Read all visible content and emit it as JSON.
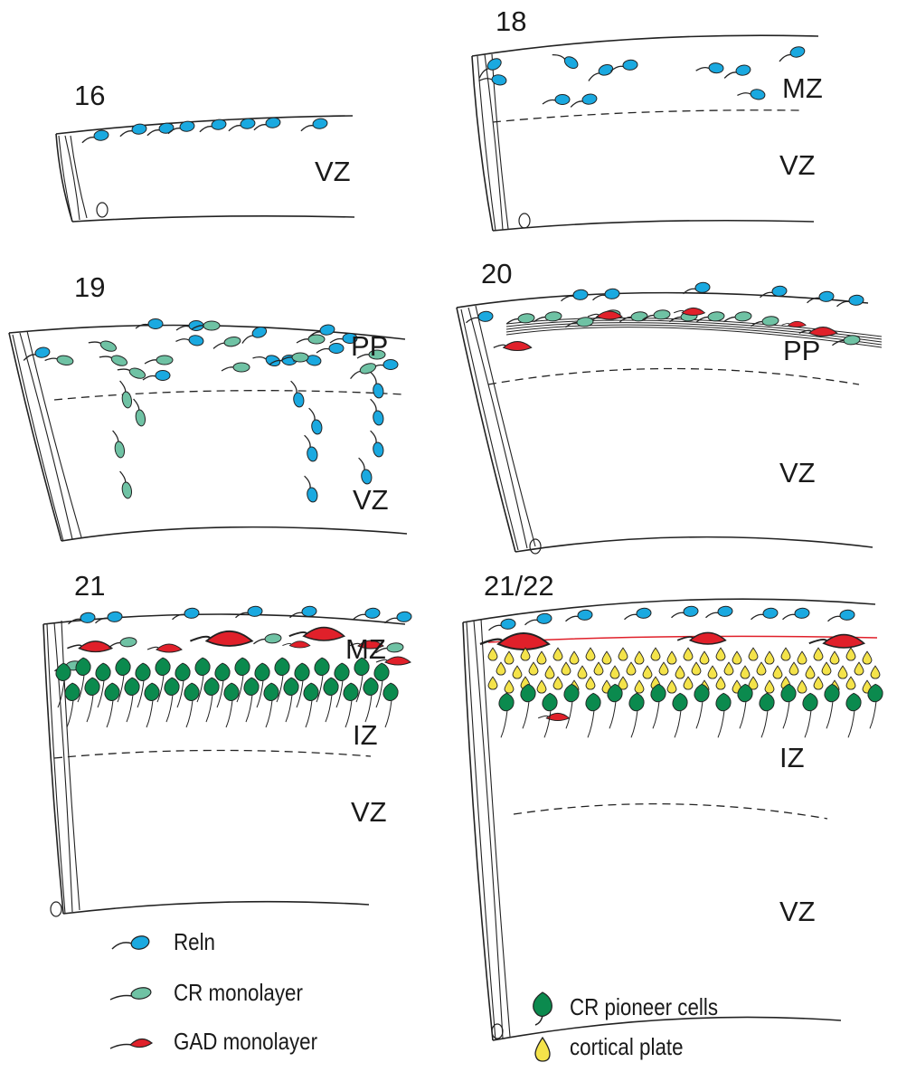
{
  "panels": [
    {
      "stage": "16",
      "zones": [
        "VZ"
      ]
    },
    {
      "stage": "18",
      "zones": [
        "MZ",
        "VZ"
      ]
    },
    {
      "stage": "19",
      "zones": [
        "PP",
        "VZ"
      ]
    },
    {
      "stage": "20",
      "zones": [
        "PP",
        "VZ"
      ]
    },
    {
      "stage": "21",
      "zones": [
        "MZ",
        "IZ",
        "VZ"
      ]
    },
    {
      "stage": "21/22",
      "zones": [
        "IZ",
        "VZ"
      ]
    }
  ],
  "legend": [
    {
      "label": "Reln",
      "color": "#1aa9e0"
    },
    {
      "label": "CR monolayer",
      "color": "#6fc2a4"
    },
    {
      "label": "GAD monolayer",
      "color": "#e0202a"
    },
    {
      "label": "CR pioneer cells",
      "color": "#0b8a4e"
    },
    {
      "label": "cortical plate",
      "color": "#f4e34a"
    }
  ]
}
